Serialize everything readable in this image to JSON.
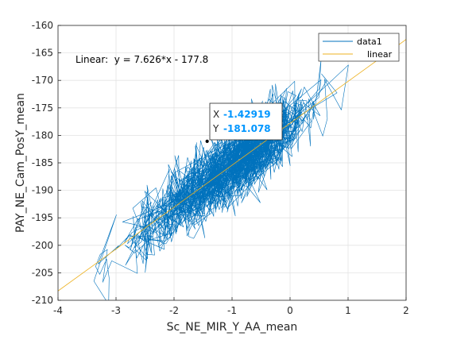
{
  "chart_data": {
    "type": "scatter",
    "xlabel": "Sc_NE_MIR_Y_AA_mean",
    "ylabel": "PAY_NE_Cam_PosY_mean",
    "xlim": [
      -4,
      2
    ],
    "ylim": [
      -210,
      -160
    ],
    "xticks": [
      "-4",
      "-3",
      "-2",
      "-1",
      "0",
      "1",
      "2"
    ],
    "yticks": [
      "-160",
      "-165",
      "-170",
      "-175",
      "-180",
      "-185",
      "-190",
      "-195",
      "-200",
      "-205",
      "-210"
    ],
    "grid": true,
    "legend_position": "top-right",
    "series": [
      {
        "name": "data1",
        "color": "#0072bd",
        "style": "line",
        "trend_slope": 7.626,
        "trend_intercept": -177.8,
        "x_range": [
          -3.8,
          1.8
        ],
        "spread_y": 3.5
      },
      {
        "name": "linear",
        "color": "#edb120",
        "style": "line",
        "slope": 7.626,
        "intercept": -177.8
      }
    ],
    "annotation": "Linear:  y = 7.626*x - 177.8",
    "datatip": {
      "x_label": "X",
      "x_value": "-1.42919",
      "y_label": "Y",
      "y_value": "-181.078",
      "x": -1.42919,
      "y": -181.078
    }
  },
  "colors": {
    "series1": "#0072bd",
    "series2": "#edb120",
    "datatip_value": "#0096ff",
    "grid": "#e3e3e3",
    "axis": "#262626"
  }
}
